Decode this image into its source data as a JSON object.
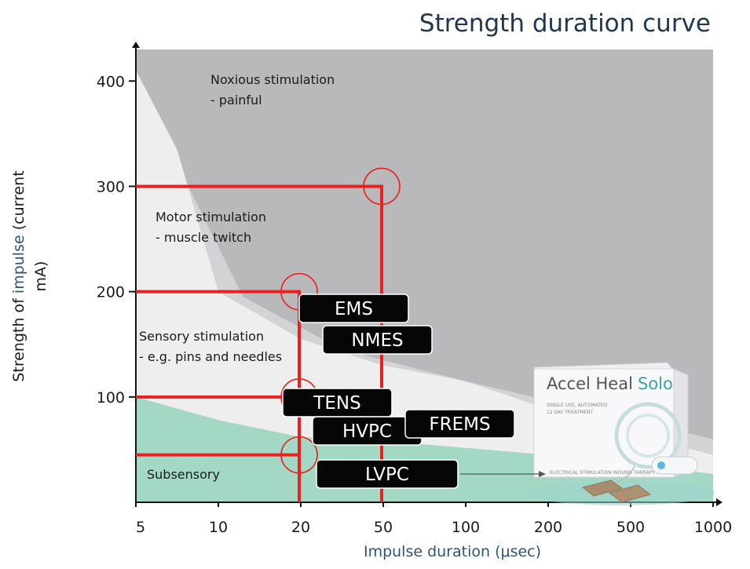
{
  "chart_data": {
    "type": "area",
    "title": "Strength duration curve",
    "xlabel": "Impulse duration (μsec)",
    "ylabel_parts": [
      "Strength of ",
      "impulse",
      " (current",
      "mA)"
    ],
    "x_ticks": [
      "5",
      "10",
      "20",
      "50",
      "100",
      "200",
      "500",
      "1000"
    ],
    "y_ticks": [
      100,
      200,
      300,
      400
    ],
    "y_tick_labels": [
      "100",
      "200",
      "300",
      "400"
    ],
    "ylim": [
      0,
      430
    ],
    "regions": [
      {
        "name": "Noxious stimulation",
        "sub": "- painful"
      },
      {
        "name": "Motor stimulation",
        "sub": "- muscle twitch"
      },
      {
        "name": "Sensory stimulation",
        "sub": "- e.g. pins and needles"
      },
      {
        "name": "Subsensory",
        "sub": ""
      }
    ],
    "threshold_curves": [
      {
        "name": "noxious-threshold",
        "points": [
          [
            0,
            400
          ],
          [
            0.7,
            290
          ],
          [
            1.3,
            195
          ],
          [
            2.5,
            145
          ],
          [
            4.0,
            115
          ],
          [
            5.2,
            93
          ],
          [
            7.0,
            60
          ]
        ]
      },
      {
        "name": "motor-threshold",
        "points": [
          [
            0,
            410
          ],
          [
            0.5,
            335
          ],
          [
            1,
            200
          ],
          [
            2,
            155
          ],
          [
            3,
            130
          ],
          [
            4,
            115
          ],
          [
            5.5,
            75
          ],
          [
            7,
            45
          ]
        ]
      },
      {
        "name": "sensory-threshold",
        "points": [
          [
            0,
            100
          ],
          [
            1,
            78
          ],
          [
            2,
            62
          ],
          [
            3.5,
            55
          ],
          [
            5,
            45
          ],
          [
            7,
            27
          ]
        ]
      }
    ],
    "reference_lines": [
      {
        "duration_tick": 2,
        "current": 200
      },
      {
        "duration_tick": 2,
        "current": 100
      },
      {
        "duration_tick": 2,
        "current": 45
      },
      {
        "duration_tick": 3,
        "current": 300
      }
    ],
    "modalities": [
      "EMS",
      "NMES",
      "TENS",
      "HVPC",
      "FREMS",
      "LVPC"
    ]
  },
  "product": {
    "brand": "Accel Heal",
    "model": "Solo",
    "line1": "SINGLE USE, AUTOMATED",
    "line2": "12 DAY TREATMENT",
    "bottom": "ELECTRICAL STIMULATION WOUND THERAPY"
  },
  "colors": {
    "noxious": "#b9b9bb",
    "motor": "#d3d3d5",
    "sensory": "#eeeeef",
    "subsensory": "#a3d9c4",
    "red": "#e8201f",
    "axis_blue": "#2e5575",
    "title": "#1f3550"
  }
}
